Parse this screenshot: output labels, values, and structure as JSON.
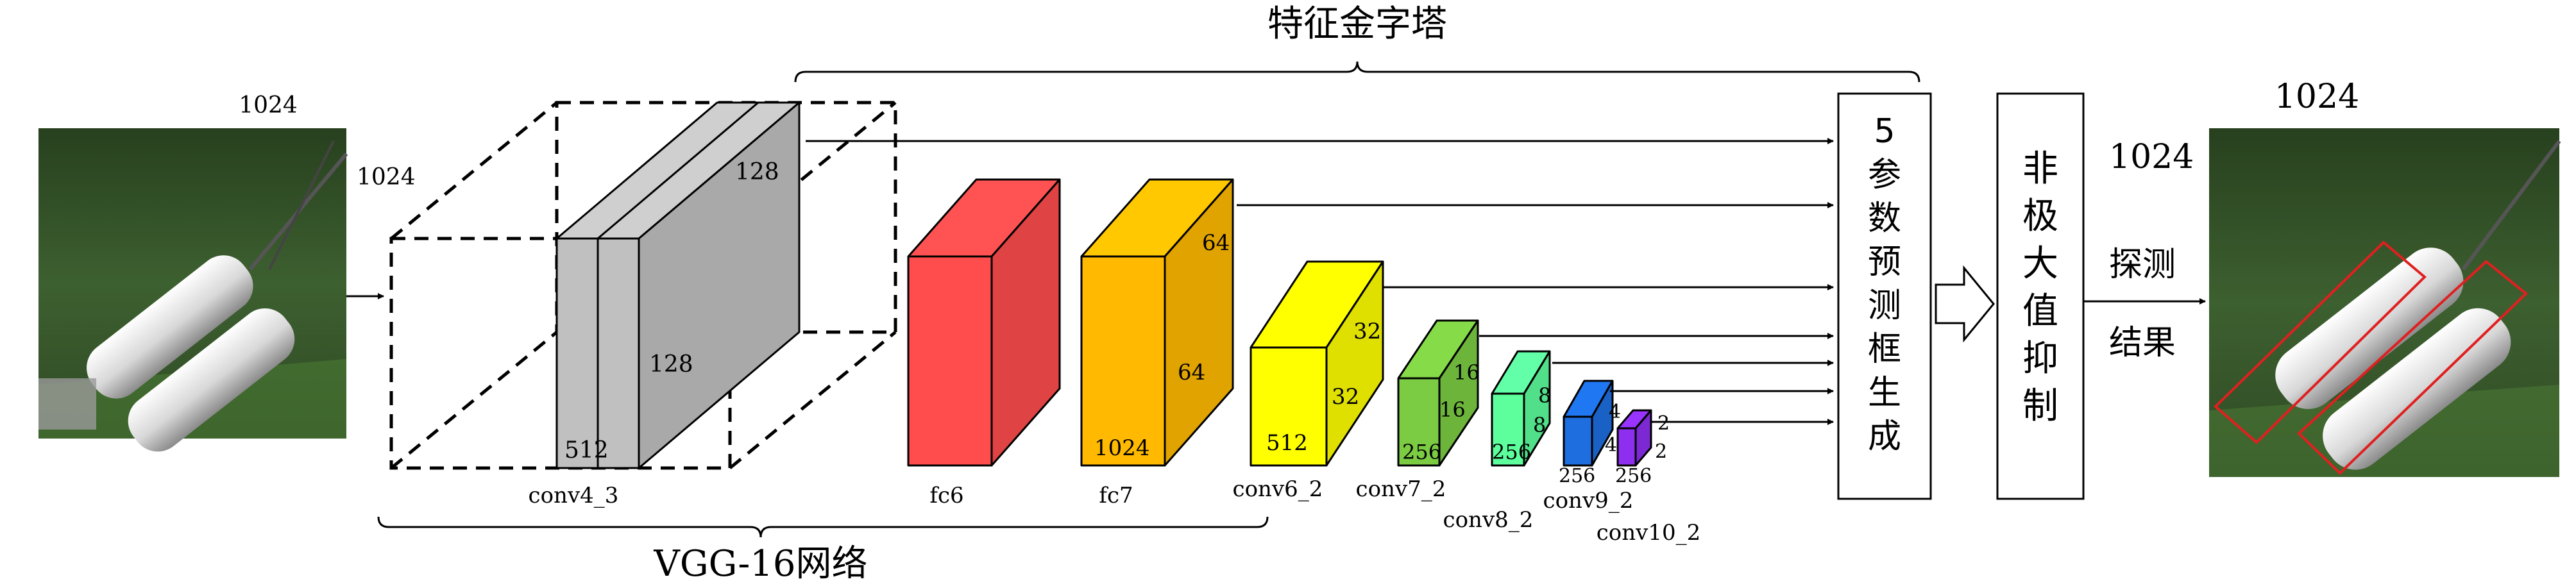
{
  "title_top": "特征金字塔",
  "title_bottom": "VGG-16网络",
  "input": {
    "width_label": "1024",
    "height_label": "1024"
  },
  "layers": [
    {
      "id": "conv4_3",
      "label": "conv4_3",
      "dims": [
        "128",
        "128",
        "512"
      ],
      "color": "#c0c0c0"
    },
    {
      "id": "fc6",
      "label": "fc6",
      "dims": [],
      "color": "#ff4c4c"
    },
    {
      "id": "fc7",
      "label": "fc7",
      "dims": [
        "64",
        "64",
        "1024"
      ],
      "color": "#ffb900"
    },
    {
      "id": "conv6_2",
      "label": "conv6_2",
      "dims": [
        "32",
        "32",
        "512"
      ],
      "color": "#ffff00"
    },
    {
      "id": "conv7_2",
      "label": "conv7_2",
      "dims": [
        "16",
        "16",
        "256"
      ],
      "color": "#7ccc43"
    },
    {
      "id": "conv8_2",
      "label": "conv8_2",
      "dims": [
        "8",
        "8",
        "256"
      ],
      "color": "#5cff9c"
    },
    {
      "id": "conv9_2",
      "label": "conv9_2",
      "dims": [
        "4",
        "4",
        "256"
      ],
      "color": "#1e6ee0"
    },
    {
      "id": "conv10_2",
      "label": "conv10_2",
      "dims": [
        "2",
        "2",
        "256"
      ],
      "color": "#8e2ff0"
    }
  ],
  "box_generation": [
    "5",
    "参",
    "数",
    "预",
    "测",
    "框",
    "生",
    "成"
  ],
  "nms": [
    "非",
    "极",
    "大",
    "值",
    "抑",
    "制"
  ],
  "result_label": [
    "探测",
    "结果"
  ],
  "output": {
    "width_label": "1024",
    "height_label": "1024"
  },
  "colors": {
    "detection_box": "#e02020",
    "line": "#000000"
  }
}
